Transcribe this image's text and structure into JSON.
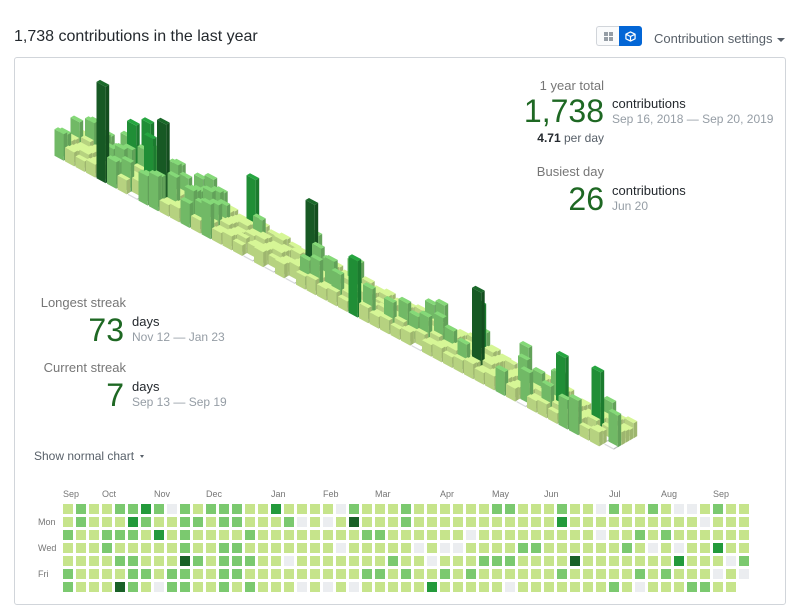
{
  "header": {
    "title": "1,738 contributions in the last year",
    "settings_label": "Contribution settings"
  },
  "toggle": {
    "options": [
      {
        "icon": "grid-icon",
        "active": false
      },
      {
        "icon": "cube-icon",
        "active": true
      }
    ],
    "accent": "#0366d6"
  },
  "stats": {
    "year_total": {
      "label": "1 year total",
      "value": "1,738",
      "unit": "contributions",
      "range": "Sep 16, 2018 — Sep 20, 2019",
      "per_day_value": "4.71",
      "per_day_label": "per day"
    },
    "busiest_day": {
      "label": "Busiest day",
      "value": "26",
      "unit": "contributions",
      "date": "Jun 20"
    },
    "longest_streak": {
      "label": "Longest streak",
      "value": "73",
      "unit": "days",
      "range": "Nov 12 — Jan 23"
    },
    "current_streak": {
      "label": "Current streak",
      "value": "7",
      "unit": "days",
      "range": "Sep 13 — Sep 19"
    }
  },
  "show_normal_chart": "Show normal chart",
  "calendar": {
    "months": [
      {
        "label": "Sep",
        "col": 0
      },
      {
        "label": "Oct",
        "col": 3
      },
      {
        "label": "Nov",
        "col": 7
      },
      {
        "label": "Dec",
        "col": 11
      },
      {
        "label": "Jan",
        "col": 16
      },
      {
        "label": "Feb",
        "col": 20
      },
      {
        "label": "Mar",
        "col": 24
      },
      {
        "label": "Apr",
        "col": 29
      },
      {
        "label": "May",
        "col": 33
      },
      {
        "label": "Jun",
        "col": 37
      },
      {
        "label": "Jul",
        "col": 42
      },
      {
        "label": "Aug",
        "col": 46
      },
      {
        "label": "Sep",
        "col": 50
      }
    ],
    "days": [
      {
        "label": "Mon",
        "row": 1
      },
      {
        "label": "Wed",
        "row": 3
      },
      {
        "label": "Fri",
        "row": 5
      }
    ],
    "colors": [
      "#ebedf0",
      "#c6e48b",
      "#7bc96f",
      "#239a3b",
      "#196127"
    ],
    "rows": [
      [
        1,
        2,
        1,
        1,
        2,
        2,
        3,
        2,
        0,
        2,
        1,
        2,
        2,
        2,
        1,
        1,
        3,
        1,
        1,
        1,
        1,
        0,
        2,
        1,
        1,
        1,
        2,
        1,
        1,
        1,
        1,
        1,
        1,
        2,
        2,
        1,
        1,
        1,
        2,
        1,
        1,
        0,
        2,
        1,
        1,
        2,
        1,
        0,
        0,
        1,
        2,
        1,
        1
      ],
      [
        1,
        2,
        1,
        1,
        1,
        3,
        2,
        1,
        1,
        2,
        2,
        1,
        2,
        2,
        1,
        1,
        1,
        2,
        0,
        1,
        0,
        1,
        4,
        1,
        1,
        1,
        2,
        1,
        1,
        1,
        1,
        1,
        1,
        1,
        1,
        1,
        1,
        1,
        3,
        1,
        1,
        1,
        1,
        1,
        1,
        1,
        1,
        1,
        1,
        0,
        1,
        1,
        1
      ],
      [
        2,
        1,
        1,
        2,
        2,
        2,
        1,
        3,
        1,
        2,
        1,
        1,
        1,
        1,
        2,
        1,
        1,
        1,
        1,
        1,
        1,
        1,
        1,
        2,
        2,
        1,
        1,
        1,
        1,
        1,
        1,
        0,
        1,
        1,
        1,
        1,
        1,
        1,
        1,
        1,
        1,
        0,
        1,
        1,
        2,
        1,
        2,
        1,
        1,
        1,
        1,
        1,
        1
      ],
      [
        1,
        1,
        1,
        2,
        1,
        1,
        1,
        1,
        1,
        2,
        1,
        1,
        2,
        2,
        1,
        1,
        1,
        1,
        1,
        1,
        1,
        0,
        1,
        1,
        1,
        1,
        1,
        0,
        1,
        0,
        0,
        1,
        1,
        1,
        1,
        2,
        2,
        1,
        1,
        1,
        1,
        1,
        1,
        2,
        1,
        0,
        1,
        0,
        1,
        1,
        3,
        1,
        1
      ],
      [
        1,
        1,
        1,
        1,
        2,
        2,
        1,
        1,
        1,
        4,
        2,
        1,
        2,
        2,
        2,
        1,
        1,
        0,
        1,
        1,
        1,
        1,
        1,
        1,
        1,
        2,
        1,
        1,
        0,
        1,
        1,
        1,
        2,
        2,
        2,
        1,
        1,
        1,
        1,
        4,
        1,
        1,
        1,
        1,
        1,
        1,
        1,
        3,
        1,
        1,
        1,
        0,
        2
      ],
      [
        2,
        1,
        1,
        1,
        1,
        2,
        2,
        1,
        2,
        2,
        1,
        1,
        2,
        2,
        1,
        1,
        1,
        1,
        1,
        1,
        1,
        1,
        1,
        2,
        2,
        1,
        2,
        1,
        1,
        2,
        1,
        2,
        1,
        1,
        1,
        1,
        1,
        1,
        2,
        1,
        1,
        1,
        1,
        1,
        2,
        1,
        2,
        1,
        1,
        1,
        0,
        1,
        0
      ],
      [
        2,
        1,
        1,
        1,
        4,
        2,
        1,
        0,
        2,
        2,
        1,
        1,
        2,
        1,
        2,
        1,
        1,
        1,
        0,
        1,
        0,
        1,
        0,
        1,
        1,
        1,
        1,
        1,
        3,
        1,
        1,
        1,
        1,
        1,
        0,
        1,
        1,
        1,
        1,
        1,
        1,
        1,
        2,
        1,
        0,
        1,
        1,
        1,
        2,
        2,
        1,
        1,
        null
      ]
    ]
  }
}
